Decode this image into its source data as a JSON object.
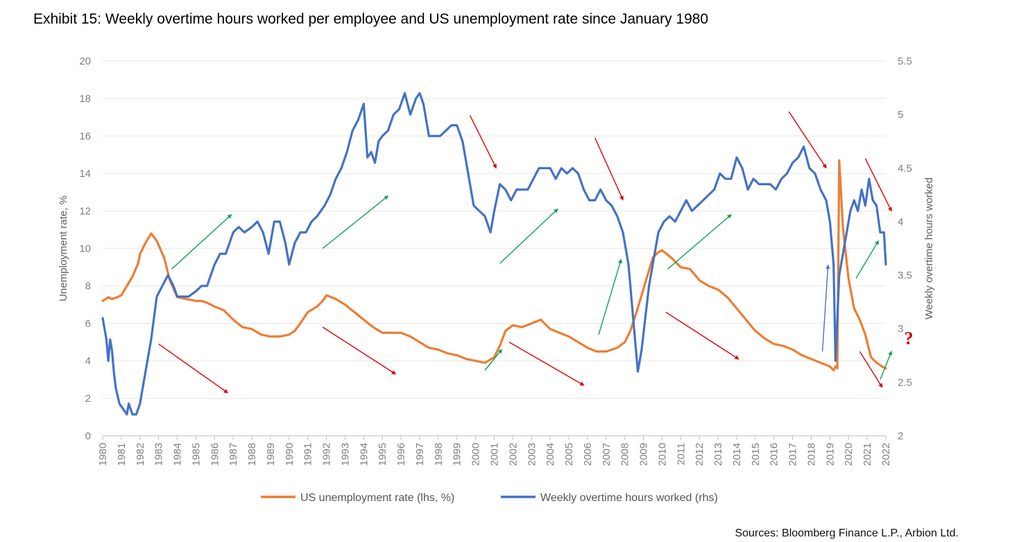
{
  "title": "Exhibit 15: Weekly overtime hours worked per employee and US unemployment rate since January 1980",
  "source": "Sources: Bloomberg Finance L.P., Arbion Ltd.",
  "colors": {
    "unemployment": "#ED7D31",
    "overtime": "#4472C4",
    "grid": "#e6e6e6",
    "red_arrow": "#e00000",
    "green_arrow": "#0aa34f",
    "blue_arrow": "#4472C4",
    "question": "#d40000"
  },
  "chart_data": {
    "type": "line",
    "xlabel": "",
    "ylabel_left": "Unemployment rate, %",
    "ylabel_right": "Weekly overtime hours worked",
    "ylim_left": [
      0,
      20
    ],
    "ylim_right": [
      2,
      5.5
    ],
    "yticks_left": [
      "0",
      "2",
      "4",
      "6",
      "8",
      "10",
      "12",
      "14",
      "16",
      "18",
      "20"
    ],
    "yticks_right": [
      "2",
      "2.5",
      "3",
      "3.5",
      "4",
      "4.5",
      "5",
      "5.5"
    ],
    "x_tick_labels": [
      "1980",
      "1981",
      "1982",
      "1983",
      "1984",
      "1985",
      "1986",
      "1987",
      "1988",
      "1989",
      "1990",
      "1991",
      "1992",
      "1993",
      "1994",
      "1995",
      "1996",
      "1997",
      "1998",
      "1999",
      "2000",
      "2001",
      "2002",
      "2003",
      "2004",
      "2005",
      "2006",
      "2007",
      "2008",
      "2009",
      "2010",
      "2011",
      "2012",
      "2013",
      "2014",
      "2015",
      "2016",
      "2017",
      "2018",
      "2019",
      "2020",
      "2021",
      "2022"
    ],
    "legend": [
      "US unemployment rate (lhs, %)",
      "Weekly overtime hours worked (rhs)"
    ],
    "annotation_question": "?",
    "series": [
      {
        "name": "US unemployment rate (lhs, %)",
        "axis": "left",
        "x": [
          1980.0,
          1980.3,
          1980.5,
          1980.8,
          1981.0,
          1981.3,
          1981.6,
          1981.9,
          1982.0,
          1982.3,
          1982.6,
          1982.9,
          1983.3,
          1983.6,
          1984.0,
          1984.5,
          1985.0,
          1985.3,
          1985.6,
          1986.0,
          1986.5,
          1987.0,
          1987.5,
          1988.0,
          1988.5,
          1989.0,
          1989.5,
          1990.0,
          1990.3,
          1990.6,
          1991.0,
          1991.5,
          1991.8,
          1992.0,
          1992.5,
          1993.0,
          1993.5,
          1994.0,
          1994.5,
          1995.0,
          1995.5,
          1996.0,
          1996.5,
          1997.0,
          1997.5,
          1998.0,
          1998.5,
          1999.0,
          1999.5,
          2000.0,
          2000.5,
          2001.0,
          2001.3,
          2001.6,
          2002.0,
          2002.5,
          2003.0,
          2003.5,
          2004.0,
          2004.5,
          2005.0,
          2005.5,
          2006.0,
          2006.5,
          2007.0,
          2007.3,
          2007.6,
          2008.0,
          2008.3,
          2008.6,
          2008.9,
          2009.2,
          2009.5,
          2009.8,
          2010.0,
          2010.5,
          2011.0,
          2011.5,
          2012.0,
          2012.5,
          2013.0,
          2013.5,
          2014.0,
          2014.5,
          2015.0,
          2015.5,
          2016.0,
          2016.5,
          2017.0,
          2017.5,
          2018.0,
          2018.5,
          2019.0,
          2019.2,
          2019.3,
          2019.4,
          2019.5,
          2019.7,
          2020.0,
          2020.3,
          2020.6,
          2020.9,
          2021.2,
          2021.5,
          2021.8,
          2022.0
        ],
        "values": [
          7.2,
          7.4,
          7.3,
          7.4,
          7.5,
          8.0,
          8.5,
          9.2,
          9.7,
          10.3,
          10.8,
          10.4,
          9.5,
          8.3,
          7.4,
          7.3,
          7.2,
          7.2,
          7.1,
          6.9,
          6.7,
          6.2,
          5.8,
          5.7,
          5.4,
          5.3,
          5.3,
          5.4,
          5.6,
          6.0,
          6.6,
          6.9,
          7.2,
          7.5,
          7.3,
          7.0,
          6.6,
          6.2,
          5.8,
          5.5,
          5.5,
          5.5,
          5.3,
          5.0,
          4.7,
          4.6,
          4.4,
          4.3,
          4.1,
          4.0,
          3.9,
          4.2,
          4.8,
          5.6,
          5.9,
          5.8,
          6.0,
          6.2,
          5.7,
          5.5,
          5.3,
          5.0,
          4.7,
          4.5,
          4.5,
          4.6,
          4.7,
          5.0,
          5.6,
          6.5,
          7.5,
          8.5,
          9.5,
          9.8,
          9.9,
          9.5,
          9.0,
          8.9,
          8.3,
          8.0,
          7.8,
          7.4,
          6.8,
          6.2,
          5.6,
          5.2,
          4.9,
          4.8,
          4.6,
          4.3,
          4.1,
          3.9,
          3.7,
          3.5,
          3.7,
          3.6,
          14.7,
          11.1,
          8.4,
          6.8,
          6.2,
          5.4,
          4.2,
          3.9,
          3.7,
          3.6
        ]
      },
      {
        "name": "Weekly overtime hours worked (rhs)",
        "axis": "right",
        "x": [
          1980.0,
          1980.2,
          1980.3,
          1980.4,
          1980.5,
          1980.6,
          1980.7,
          1980.9,
          1981.1,
          1981.3,
          1981.4,
          1981.6,
          1981.8,
          1982.0,
          1982.3,
          1982.6,
          1982.9,
          1983.2,
          1983.5,
          1983.8,
          1984.0,
          1984.3,
          1984.6,
          1985.0,
          1985.3,
          1985.6,
          1986.0,
          1986.3,
          1986.6,
          1987.0,
          1987.3,
          1987.6,
          1988.0,
          1988.3,
          1988.6,
          1988.9,
          1989.2,
          1989.5,
          1989.8,
          1990.0,
          1990.3,
          1990.6,
          1990.9,
          1991.2,
          1991.5,
          1991.9,
          1992.2,
          1992.5,
          1992.8,
          1993.1,
          1993.4,
          1993.7,
          1994.0,
          1994.2,
          1994.4,
          1994.6,
          1994.8,
          1995.0,
          1995.3,
          1995.6,
          1995.9,
          1996.2,
          1996.5,
          1996.8,
          1997.0,
          1997.2,
          1997.5,
          1997.8,
          1998.1,
          1998.4,
          1998.7,
          1999.0,
          1999.3,
          1999.6,
          1999.9,
          2000.2,
          2000.5,
          2000.8,
          2001.0,
          2001.3,
          2001.6,
          2001.9,
          2002.2,
          2002.5,
          2002.8,
          2003.1,
          2003.4,
          2003.7,
          2004.0,
          2004.3,
          2004.6,
          2004.9,
          2005.2,
          2005.5,
          2005.8,
          2006.1,
          2006.4,
          2006.7,
          2007.0,
          2007.3,
          2007.6,
          2007.9,
          2008.2,
          2008.5,
          2008.7,
          2008.9,
          2009.1,
          2009.3,
          2009.5,
          2009.8,
          2010.1,
          2010.4,
          2010.7,
          2011.0,
          2011.3,
          2011.6,
          2011.9,
          2012.2,
          2012.5,
          2012.8,
          2013.1,
          2013.4,
          2013.7,
          2014.0,
          2014.3,
          2014.6,
          2014.9,
          2015.2,
          2015.5,
          2015.8,
          2016.1,
          2016.4,
          2016.7,
          2017.0,
          2017.3,
          2017.6,
          2017.9,
          2018.2,
          2018.5,
          2018.8,
          2019.0,
          2019.2,
          2019.3,
          2019.5,
          2019.7,
          2019.9,
          2020.1,
          2020.3,
          2020.5,
          2020.7,
          2020.9,
          2021.1,
          2021.3,
          2021.5,
          2021.7,
          2021.9,
          2022.0
        ],
        "values": [
          3.1,
          2.9,
          2.7,
          2.9,
          2.8,
          2.6,
          2.45,
          2.3,
          2.25,
          2.2,
          2.3,
          2.2,
          2.2,
          2.3,
          2.6,
          2.9,
          3.3,
          3.4,
          3.5,
          3.4,
          3.3,
          3.3,
          3.3,
          3.35,
          3.4,
          3.4,
          3.6,
          3.7,
          3.7,
          3.9,
          3.95,
          3.9,
          3.95,
          4.0,
          3.9,
          3.7,
          4.0,
          4.0,
          3.8,
          3.6,
          3.8,
          3.9,
          3.9,
          4.0,
          4.05,
          4.15,
          4.25,
          4.4,
          4.5,
          4.65,
          4.85,
          4.95,
          5.1,
          4.6,
          4.65,
          4.55,
          4.75,
          4.8,
          4.85,
          5.0,
          5.05,
          5.2,
          5.0,
          5.15,
          5.2,
          5.1,
          4.8,
          4.8,
          4.8,
          4.85,
          4.9,
          4.9,
          4.75,
          4.45,
          4.15,
          4.1,
          4.05,
          3.9,
          4.1,
          4.35,
          4.3,
          4.2,
          4.3,
          4.3,
          4.3,
          4.4,
          4.5,
          4.5,
          4.5,
          4.4,
          4.5,
          4.45,
          4.5,
          4.45,
          4.3,
          4.2,
          4.2,
          4.3,
          4.2,
          4.15,
          4.05,
          3.9,
          3.6,
          3.0,
          2.6,
          2.8,
          3.1,
          3.4,
          3.6,
          3.9,
          4.0,
          4.05,
          4.0,
          4.1,
          4.2,
          4.1,
          4.15,
          4.2,
          4.25,
          4.3,
          4.45,
          4.4,
          4.4,
          4.6,
          4.5,
          4.3,
          4.4,
          4.35,
          4.35,
          4.35,
          4.3,
          4.4,
          4.45,
          4.55,
          4.6,
          4.7,
          4.5,
          4.45,
          4.3,
          4.2,
          4.0,
          3.6,
          2.7,
          3.5,
          3.7,
          3.9,
          4.1,
          4.2,
          4.1,
          4.3,
          4.15,
          4.4,
          4.2,
          4.15,
          3.9,
          3.9,
          3.6
        ]
      }
    ],
    "annotation_arrows": [
      {
        "color": "green",
        "from": [
          1983.7,
          8.9
        ],
        "to": [
          1986.9,
          11.8
        ]
      },
      {
        "color": "red",
        "from": [
          1983.0,
          4.9
        ],
        "to": [
          1986.7,
          2.3
        ]
      },
      {
        "color": "green",
        "from": [
          1991.8,
          10.0
        ],
        "to": [
          1995.3,
          12.8
        ]
      },
      {
        "color": "red",
        "from": [
          1991.8,
          5.8
        ],
        "to": [
          1995.7,
          3.3
        ]
      },
      {
        "color": "red",
        "from": [
          1999.7,
          17.1
        ],
        "to": [
          2001.1,
          14.3
        ]
      },
      {
        "color": "green",
        "from": [
          2000.5,
          3.5
        ],
        "to": [
          2001.4,
          4.6
        ]
      },
      {
        "color": "green",
        "from": [
          2001.3,
          9.2
        ],
        "to": [
          2004.4,
          12.1
        ]
      },
      {
        "color": "red",
        "from": [
          2001.8,
          5.0
        ],
        "to": [
          2005.8,
          2.7
        ]
      },
      {
        "color": "red",
        "from": [
          2006.4,
          15.9
        ],
        "to": [
          2007.9,
          12.6
        ]
      },
      {
        "color": "green",
        "from": [
          2006.6,
          5.4
        ],
        "to": [
          2007.8,
          9.4
        ]
      },
      {
        "color": "green",
        "from": [
          2010.3,
          8.9
        ],
        "to": [
          2013.7,
          11.8
        ]
      },
      {
        "color": "red",
        "from": [
          2010.2,
          6.6
        ],
        "to": [
          2014.1,
          4.1
        ]
      },
      {
        "color": "red",
        "from": [
          2016.8,
          17.3
        ],
        "to": [
          2018.8,
          14.3
        ]
      },
      {
        "color": "blue",
        "from": [
          2018.6,
          4.5
        ],
        "to": [
          2018.9,
          9.1
        ]
      },
      {
        "color": "red",
        "from": [
          2020.9,
          14.8
        ],
        "to": [
          2022.3,
          12.0
        ]
      },
      {
        "color": "green",
        "from": [
          2020.4,
          8.4
        ],
        "to": [
          2021.6,
          10.4
        ]
      },
      {
        "color": "red",
        "from": [
          2020.6,
          4.5
        ],
        "to": [
          2021.8,
          2.6
        ]
      },
      {
        "color": "green",
        "from": [
          2021.7,
          3.0
        ],
        "to": [
          2022.3,
          4.5
        ]
      }
    ]
  }
}
